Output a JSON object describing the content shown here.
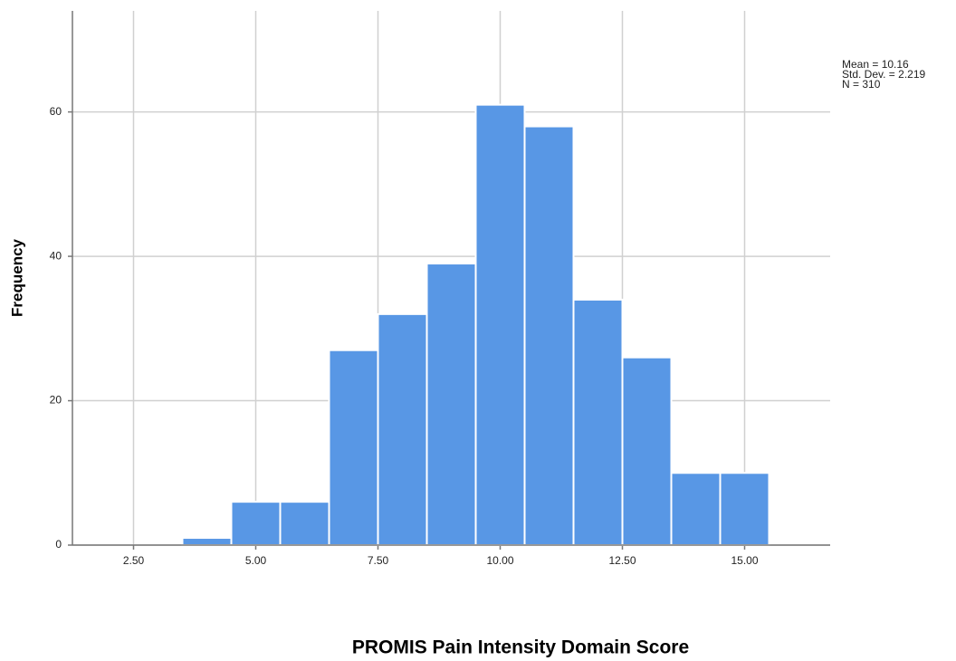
{
  "chart_data": {
    "type": "histogram",
    "x_label": "PROMIS Pain Intensity Domain Score",
    "y_label": "Frequency",
    "annotations": [
      "Mean = 10.16",
      "Std. Dev. = 2.219",
      "N = 310"
    ],
    "bins": [
      3.5,
      4.5,
      5.5,
      6.5,
      7.5,
      8.5,
      9.5,
      10.5,
      11.5,
      12.5,
      13.5,
      14.5,
      15.5
    ],
    "values": [
      1,
      6,
      6,
      27,
      32,
      39,
      61,
      58,
      34,
      26,
      10,
      10
    ],
    "color": "#5897e5",
    "xlim": [
      1.25,
      16.75
    ],
    "xticks": [
      {
        "value": 2.5,
        "label": "2.50"
      },
      {
        "value": 5,
        "label": "5.00"
      },
      {
        "value": 7.5,
        "label": "7.50"
      },
      {
        "value": 10,
        "label": "10.00"
      },
      {
        "value": 12.5,
        "label": "12.50"
      },
      {
        "value": 15,
        "label": "15.00"
      }
    ],
    "ylim": [
      0,
      74
    ],
    "yticks": [
      0,
      20,
      40,
      60
    ],
    "grid": true
  }
}
